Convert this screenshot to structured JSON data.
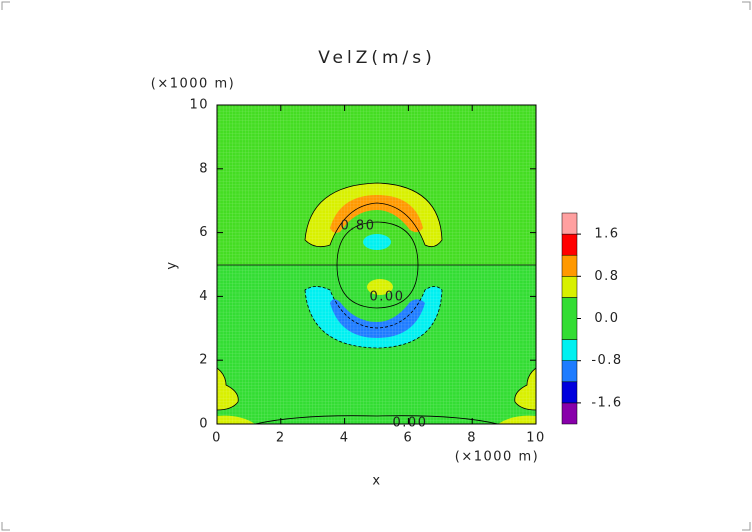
{
  "chart_data": {
    "type": "contour",
    "title": "VelZ(m/s)",
    "x_label": "x",
    "y_label": "y",
    "x_unit": "(×1000 m)",
    "y_unit": "(×1000 m)",
    "xlim": [
      0,
      10
    ],
    "ylim": [
      0,
      10
    ],
    "xticks": [
      0,
      2,
      4,
      6,
      8,
      10
    ],
    "yticks": [
      0,
      2,
      4,
      6,
      8,
      10
    ],
    "contour_labels": [
      "0.80",
      "0.00",
      "0.00"
    ],
    "colorbar": {
      "lim": [
        -2.0,
        2.0
      ],
      "levels": [
        -2.0,
        -1.6,
        -1.2,
        -0.8,
        -0.4,
        0.4,
        0.8,
        1.2,
        1.6,
        2.0
      ],
      "colors": [
        "#8800aa",
        "#0000dd",
        "#1e7cff",
        "#00f0f0",
        "#33dd33",
        "#d8f000",
        "#ff9900",
        "#ff0000",
        "#ffa0a0"
      ],
      "ticks": [
        -1.6,
        -0.8,
        {
          "value": 0,
          "label": "0.0"
        },
        0.8,
        1.6
      ]
    }
  }
}
